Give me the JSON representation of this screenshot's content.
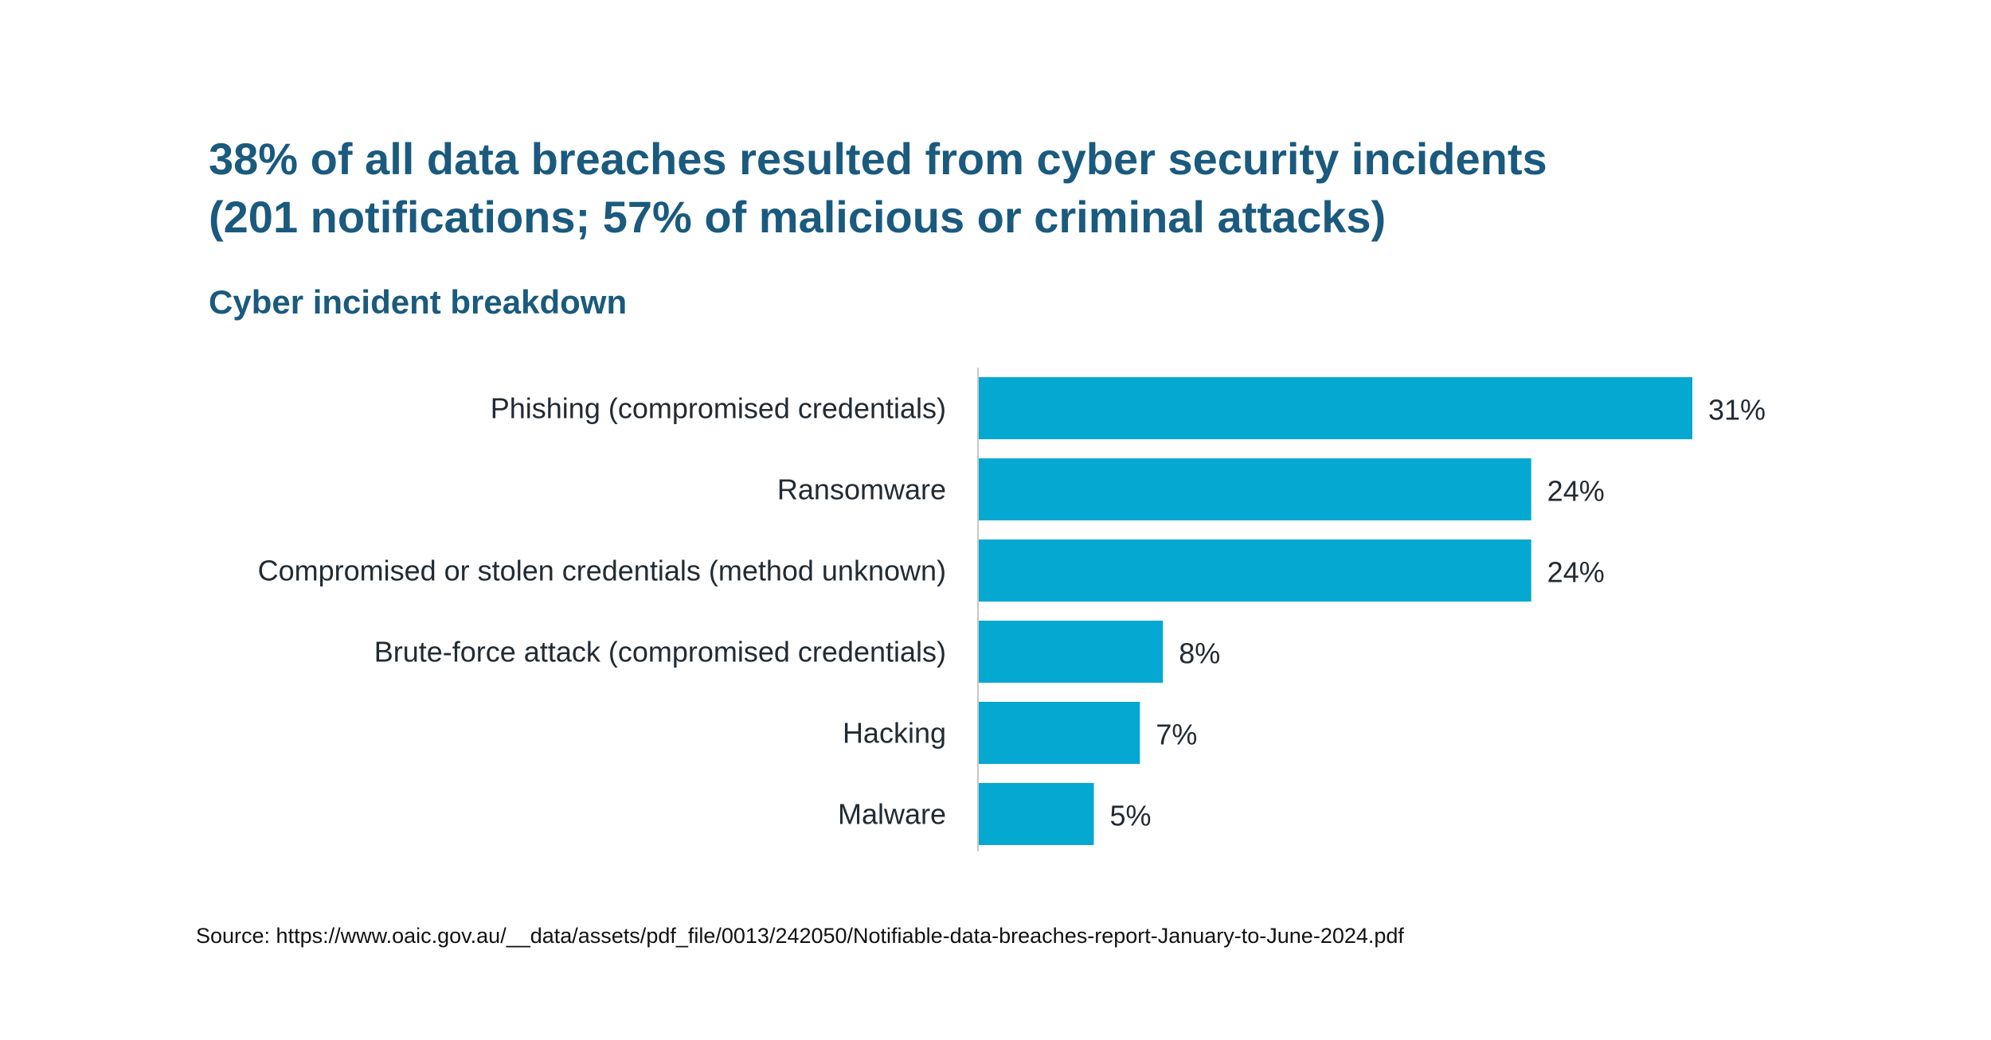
{
  "colors": {
    "title": "#1a5a7e",
    "bar": "#05a8d0",
    "axis": "#c8c8c8",
    "label": "#222b33",
    "source": "#111111"
  },
  "source_text": "Source: https://www.oaic.gov.au/__data/assets/pdf_file/0013/242050/Notifiable-data-breaches-report-January-to-June-2024.pdf",
  "chart_data": {
    "type": "bar",
    "orientation": "horizontal",
    "title_lines": [
      "38% of all data breaches resulted from cyber security incidents",
      "(201 notifications; 57% of malicious or criminal attacks)"
    ],
    "subtitle": "Cyber incident breakdown",
    "xlabel": "",
    "ylabel": "",
    "categories": [
      "Phishing (compromised credentials)",
      "Ransomware",
      "Compromised or stolen credentials (method unknown)",
      "Brute-force attack (compromised credentials)",
      "Hacking",
      "Malware"
    ],
    "values": [
      31,
      24,
      24,
      8,
      7,
      5
    ],
    "value_labels": [
      "31%",
      "24%",
      "24%",
      "8%",
      "7%",
      "5%"
    ],
    "unit": "%",
    "grid": false,
    "legend": "none"
  }
}
